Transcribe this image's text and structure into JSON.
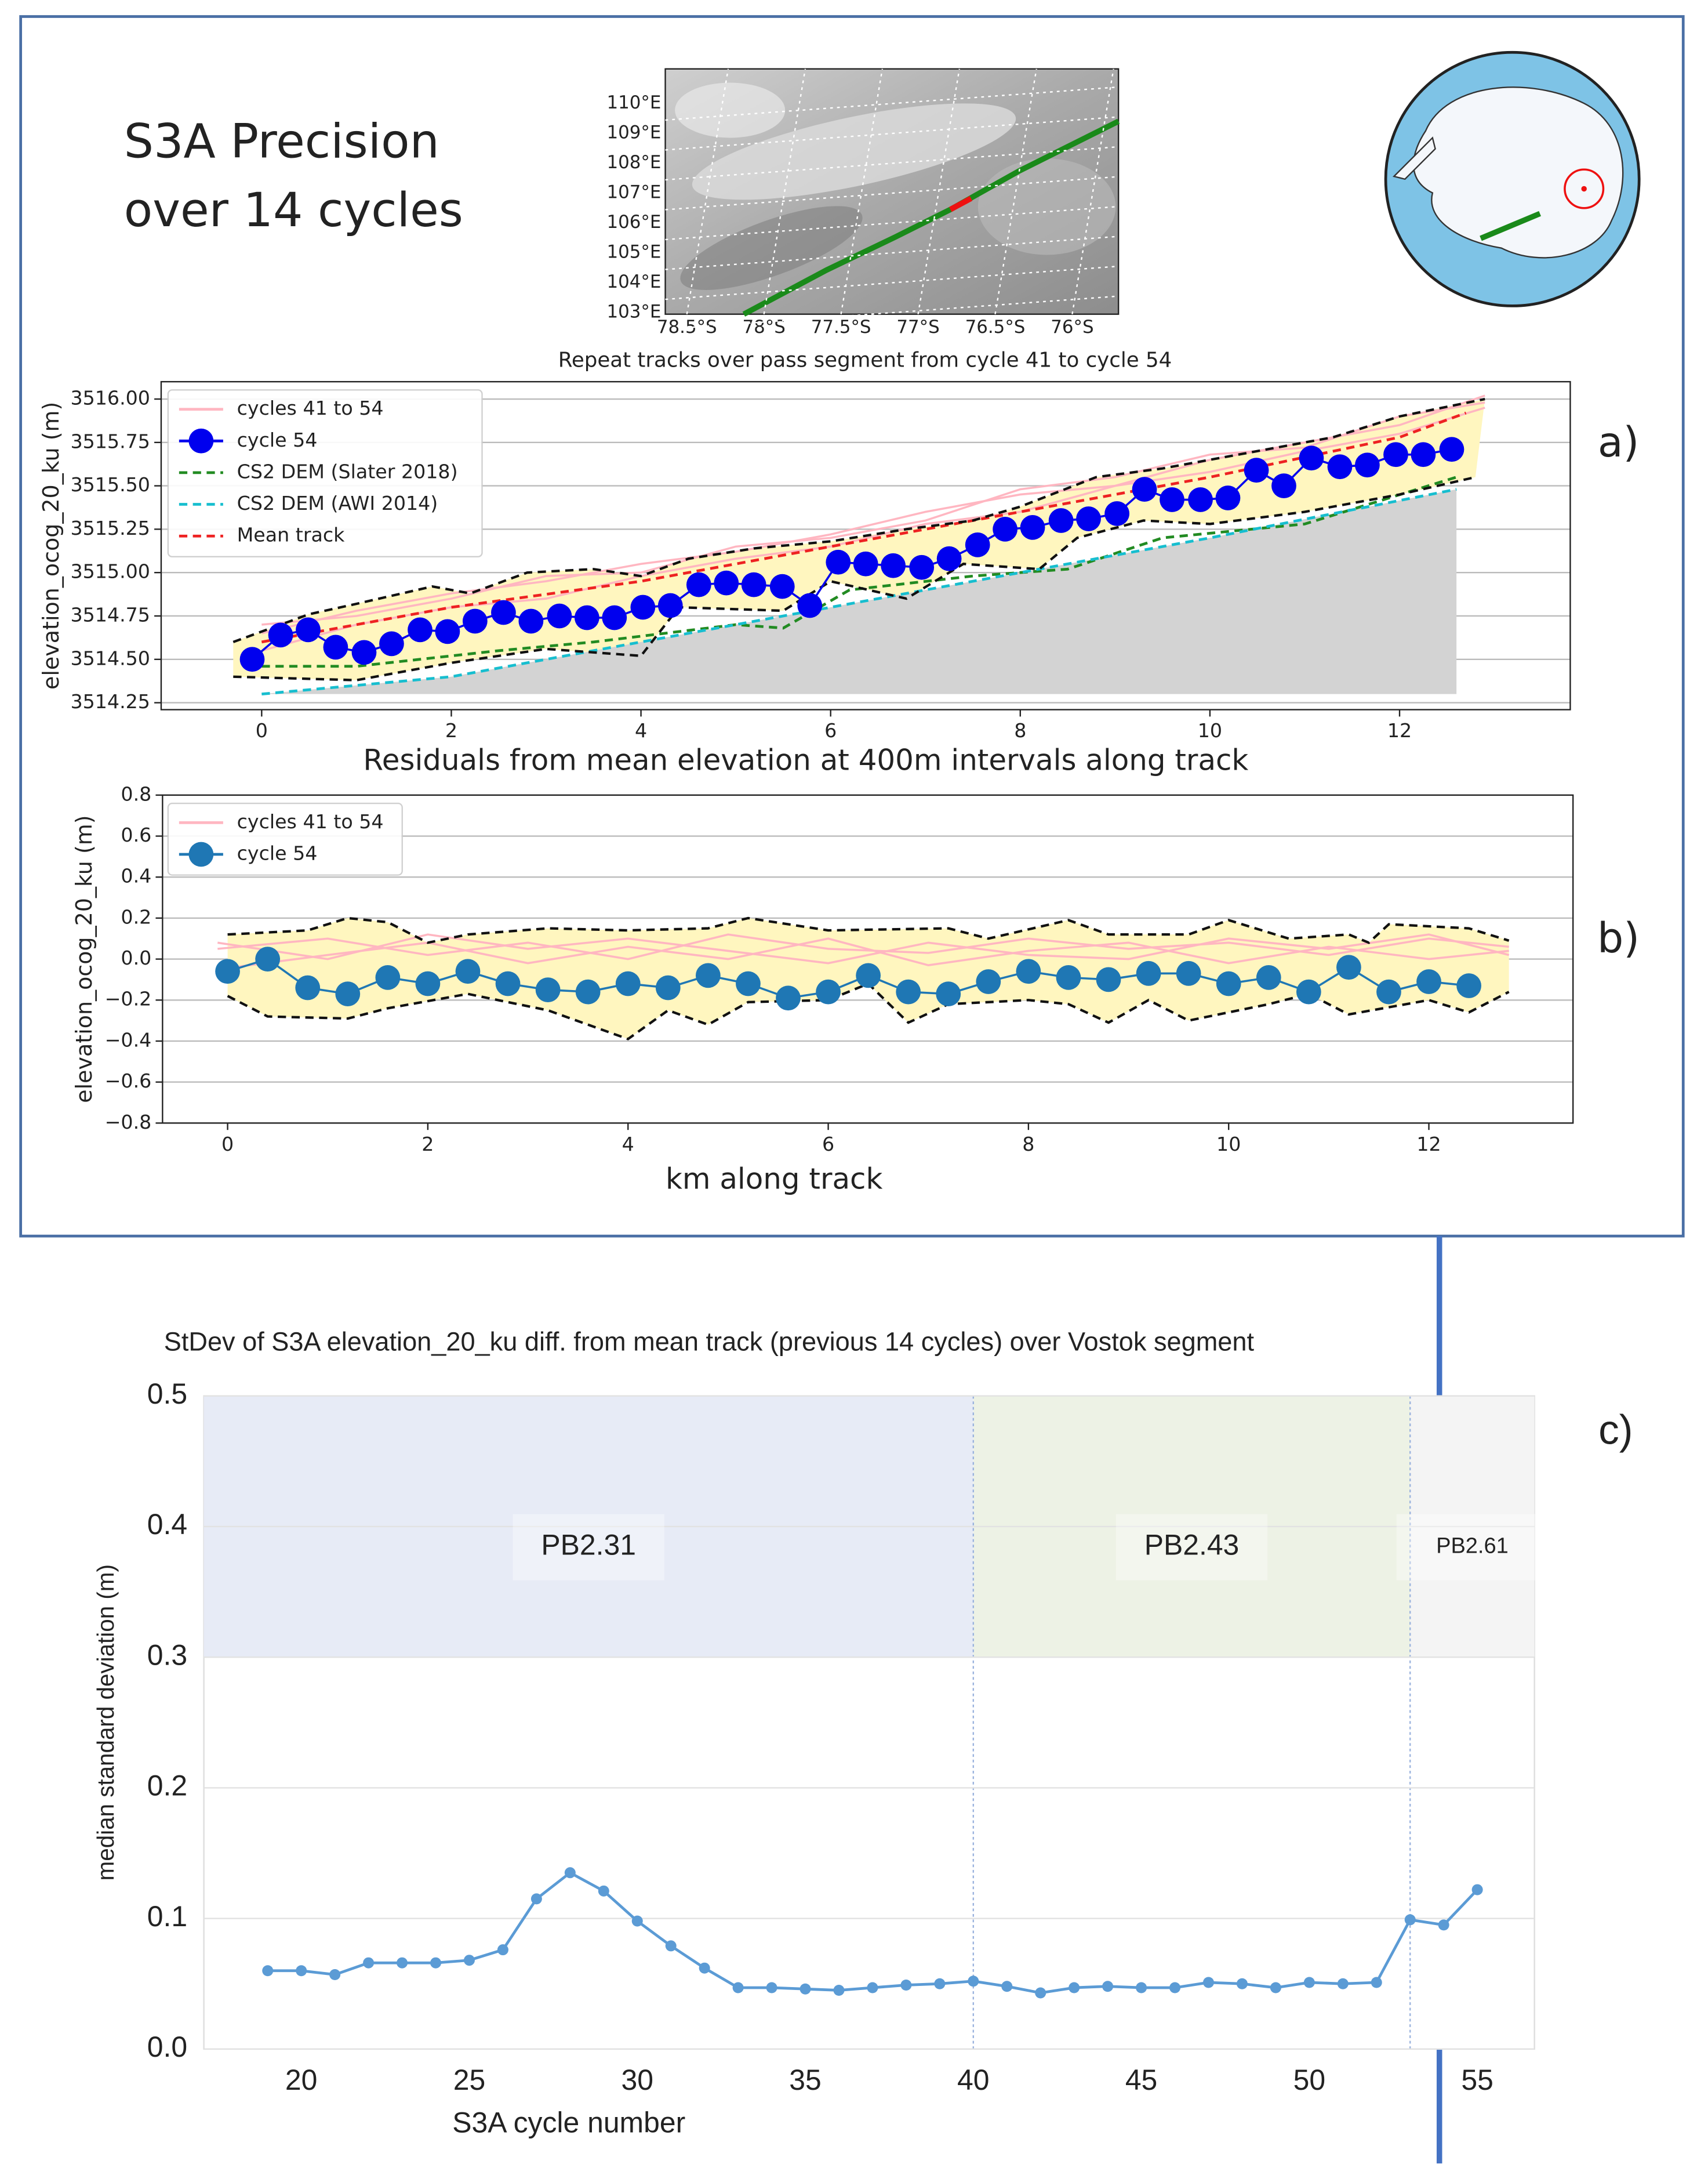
{
  "header": {
    "title": [
      "S3A Precision",
      "over 14 cycles"
    ]
  },
  "chart_data": [
    {
      "type": "map",
      "caption": "Repeat tracks over pass segment from cycle 41 to cycle 54",
      "xlim": [
        78.64,
        75.7
      ],
      "ylim": [
        102.95,
        111.16
      ],
      "xticks": [
        {
          "value": 78.5,
          "label": "78.5°S"
        },
        {
          "value": 78,
          "label": "78°S"
        },
        {
          "value": 77.5,
          "label": "77.5°S"
        },
        {
          "value": 77,
          "label": "77°S"
        },
        {
          "value": 76.5,
          "label": "76.5°S"
        },
        {
          "value": 76,
          "label": "76°S"
        }
      ],
      "yticks": [
        {
          "value": 103,
          "label": "103°E"
        },
        {
          "value": 104,
          "label": "104°E"
        },
        {
          "value": 105,
          "label": "105°E"
        },
        {
          "value": 106,
          "label": "106°E"
        },
        {
          "value": 107,
          "label": "107°E"
        },
        {
          "value": 108,
          "label": "108°E"
        },
        {
          "value": 109,
          "label": "109°E"
        },
        {
          "value": 110,
          "label": "110°E"
        }
      ]
    },
    {
      "type": "line",
      "ylabel": "elevation_ocog_20_ku (m)",
      "annotation": "a)",
      "grid": "y",
      "xlim": [
        -1.06,
        13.8
      ],
      "ylim": [
        3514.21,
        3516.1
      ],
      "xticks": [
        0,
        2,
        4,
        6,
        8,
        10,
        12
      ],
      "yticks": [
        3514.25,
        {
          "value": 3514.5,
          "label": "3514.50"
        },
        3514.75,
        {
          "value": 3515,
          "label": "3515.00"
        },
        3515.25,
        {
          "value": 3515.5,
          "label": "3515.50"
        },
        3515.75,
        {
          "value": 3516,
          "label": "3516.00"
        }
      ],
      "envelope": {
        "color": "#fff6bf",
        "upper": {
          "x": [
            -0.3,
            0.5,
            1,
            1.8,
            2.2,
            2.8,
            3.5,
            4,
            4.5,
            5.2,
            6,
            6.8,
            7.5,
            8,
            8.8,
            9.5,
            10.5,
            11.3,
            12,
            12.9
          ],
          "values": [
            3514.6,
            3514.76,
            3514.82,
            3514.92,
            3514.88,
            3515.0,
            3515.02,
            3514.98,
            3515.08,
            3515.14,
            3515.18,
            3515.25,
            3515.3,
            3515.38,
            3515.55,
            3515.6,
            3515.7,
            3515.78,
            3515.9,
            3516.0
          ]
        },
        "lower": {
          "x": [
            -0.3,
            1,
            2,
            3,
            4,
            4.4,
            5.5,
            6,
            6.8,
            7.4,
            8.2,
            8.6,
            9.3,
            10,
            11,
            12,
            12.8
          ],
          "values": [
            3514.4,
            3514.38,
            3514.48,
            3514.56,
            3514.52,
            3514.8,
            3514.78,
            3514.95,
            3514.85,
            3515.05,
            3515.02,
            3515.2,
            3515.3,
            3515.28,
            3515.35,
            3515.45,
            3515.55
          ]
        }
      },
      "series": [
        {
          "name": "cycles 41 to 54",
          "color": "#ffb6c1",
          "x": [
            0,
            1,
            2,
            3,
            4,
            5,
            6,
            7,
            8,
            9,
            10,
            11,
            12,
            12.9
          ],
          "lines": [
            [
              3514.65,
              3514.78,
              3514.88,
              3514.95,
              3515.05,
              3515.12,
              3515.22,
              3515.35,
              3515.45,
              3515.5,
              3515.65,
              3515.75,
              3515.85,
              3516.02
            ],
            [
              3514.55,
              3514.7,
              3514.8,
              3514.85,
              3514.98,
              3515.08,
              3515.15,
              3515.28,
              3515.35,
              3515.5,
              3515.58,
              3515.7,
              3515.8,
              3515.95
            ],
            [
              3514.7,
              3514.75,
              3514.85,
              3514.98,
              3515.0,
              3515.15,
              3515.2,
              3515.3,
              3515.48,
              3515.55,
              3515.68,
              3515.72,
              3515.9,
              3515.98
            ]
          ]
        },
        {
          "name": "cycle 54",
          "color": "#0000ee",
          "marker": true,
          "x": [
            -0.1,
            0.2,
            0.49,
            0.78,
            1.08,
            1.37,
            1.67,
            1.96,
            2.25,
            2.55,
            2.84,
            3.14,
            3.43,
            3.72,
            4.02,
            4.31,
            4.61,
            4.9,
            5.19,
            5.49,
            5.78,
            6.08,
            6.37,
            6.66,
            6.96,
            7.25,
            7.55,
            7.84,
            8.13,
            8.43,
            8.72,
            9.02,
            9.31,
            9.6,
            9.9,
            10.19,
            10.49,
            10.78,
            11.07,
            11.37,
            11.66,
            11.96,
            12.25,
            12.55
          ],
          "values": [
            3514.5,
            3514.64,
            3514.67,
            3514.57,
            3514.54,
            3514.59,
            3514.67,
            3514.66,
            3514.72,
            3514.77,
            3514.72,
            3514.75,
            3514.74,
            3514.74,
            3514.8,
            3514.81,
            3514.93,
            3514.94,
            3514.93,
            3514.92,
            3514.81,
            3515.06,
            3515.05,
            3515.04,
            3515.03,
            3515.08,
            3515.16,
            3515.25,
            3515.26,
            3515.3,
            3515.31,
            3515.34,
            3515.48,
            3515.42,
            3515.42,
            3515.43,
            3515.59,
            3515.5,
            3515.66,
            3515.61,
            3515.62,
            3515.68,
            3515.68,
            3515.71
          ]
        },
        {
          "name": "CS2 DEM (Slater 2018)",
          "color": "#228b22",
          "dash": true,
          "x": [
            0,
            1,
            2.5,
            3.5,
            5,
            5.5,
            6.2,
            7.5,
            8.5,
            9.5,
            11,
            12.6
          ],
          "values": [
            3514.46,
            3514.46,
            3514.55,
            3514.6,
            3514.7,
            3514.68,
            3514.9,
            3514.98,
            3515.02,
            3515.2,
            3515.28,
            3515.55
          ]
        },
        {
          "name": "CS2 DEM (AWI 2014)",
          "color": "#17becf",
          "dash": true,
          "fill": "#d3d3d3",
          "fill_base": 3514.3,
          "x": [
            0,
            2,
            4,
            6,
            8,
            10,
            12.6
          ],
          "values": [
            3514.3,
            3514.4,
            3514.6,
            3514.8,
            3515.0,
            3515.2,
            3515.48
          ]
        },
        {
          "name": "Mean track",
          "color": "#ee2222",
          "dash": true,
          "x": [
            0,
            2,
            4,
            6,
            8,
            10,
            12,
            12.7
          ],
          "values": [
            3514.6,
            3514.8,
            3514.95,
            3515.15,
            3515.35,
            3515.55,
            3515.78,
            3515.92
          ]
        }
      ]
    },
    {
      "type": "line",
      "title": "Residuals from mean elevation at 400m intervals along track",
      "xlabel": "km along track",
      "ylabel": "elevation_ocog_20_ku (m)",
      "annotation": "b)",
      "grid": "y",
      "xlim": [
        -0.65,
        13.44
      ],
      "ylim": [
        -0.8,
        0.8
      ],
      "xticks": [
        0,
        2,
        4,
        6,
        8,
        10,
        12
      ],
      "yticks": [
        {
          "value": -0.8,
          "label": "−0.8"
        },
        {
          "value": -0.6,
          "label": "−0.6"
        },
        {
          "value": -0.4,
          "label": "−0.4"
        },
        {
          "value": -0.2,
          "label": "−0.2"
        },
        {
          "value": 0,
          "label": "0.0"
        },
        0.2,
        0.4,
        0.6,
        0.8
      ],
      "envelope": {
        "color": "#fff6bf",
        "upper": {
          "x": [
            0,
            0.8,
            1.2,
            1.6,
            2.0,
            2.4,
            3.2,
            4,
            4.8,
            5.2,
            6,
            7.2,
            7.6,
            8.4,
            8.8,
            9.6,
            10,
            10.6,
            11.2,
            11.4,
            11.6,
            12.4,
            12.8
          ],
          "values": [
            0.12,
            0.14,
            0.2,
            0.18,
            0.08,
            0.12,
            0.15,
            0.14,
            0.15,
            0.2,
            0.14,
            0.15,
            0.1,
            0.19,
            0.12,
            0.12,
            0.19,
            0.1,
            0.12,
            0.08,
            0.17,
            0.15,
            0.09
          ]
        },
        "lower": {
          "x": [
            0,
            0.4,
            1.2,
            1.6,
            2.4,
            3.2,
            3.6,
            4.0,
            4.4,
            4.8,
            5.2,
            6,
            6.4,
            6.8,
            7.2,
            8,
            8.4,
            8.8,
            9.2,
            9.6,
            10.4,
            10.8,
            11.2,
            12,
            12.4,
            12.8
          ],
          "values": [
            -0.18,
            -0.28,
            -0.29,
            -0.24,
            -0.17,
            -0.25,
            -0.32,
            -0.39,
            -0.25,
            -0.32,
            -0.21,
            -0.2,
            -0.12,
            -0.31,
            -0.22,
            -0.2,
            -0.22,
            -0.31,
            -0.2,
            -0.3,
            -0.22,
            -0.17,
            -0.27,
            -0.2,
            -0.26,
            -0.16
          ]
        }
      },
      "series": [
        {
          "name": "cycles 41 to 54",
          "color": "#ffb6c1",
          "x": [
            -0.1,
            1,
            2,
            3,
            4,
            5,
            6,
            7,
            8,
            9,
            10,
            11,
            12,
            12.8
          ],
          "lines": [
            [
              0.05,
              0.1,
              0.02,
              0.08,
              0.0,
              0.12,
              0.05,
              0.03,
              0.1,
              0.05,
              0.08,
              0.02,
              0.1,
              0.06
            ],
            [
              -0.05,
              0.02,
              0.08,
              -0.02,
              0.06,
              0.0,
              0.1,
              -0.03,
              0.04,
              0.08,
              -0.02,
              0.06,
              0.0,
              0.04
            ],
            [
              0.08,
              0.0,
              0.12,
              0.05,
              0.1,
              0.04,
              -0.02,
              0.08,
              0.02,
              0.0,
              0.1,
              0.05,
              0.12,
              0.02
            ]
          ]
        },
        {
          "name": "cycle 54",
          "color": "#1f77b4",
          "marker": true,
          "x": [
            0,
            0.4,
            0.8,
            1.2,
            1.6,
            2.0,
            2.4,
            2.8,
            3.2,
            3.6,
            4.0,
            4.4,
            4.8,
            5.2,
            5.6,
            6.0,
            6.4,
            6.8,
            7.2,
            7.6,
            8.0,
            8.4,
            8.8,
            9.2,
            9.6,
            10.0,
            10.4,
            10.8,
            11.2,
            11.6,
            12.0,
            12.4
          ],
          "values": [
            -0.06,
            0.0,
            -0.14,
            -0.17,
            -0.09,
            -0.12,
            -0.06,
            -0.12,
            -0.15,
            -0.16,
            -0.12,
            -0.14,
            -0.08,
            -0.12,
            -0.19,
            -0.16,
            -0.08,
            -0.16,
            -0.17,
            -0.11,
            -0.06,
            -0.09,
            -0.1,
            -0.07,
            -0.07,
            -0.12,
            -0.09,
            -0.16,
            -0.04,
            -0.16,
            -0.11,
            -0.13
          ]
        }
      ]
    },
    {
      "type": "line",
      "title": "StDev of S3A elevation_20_ku diff. from mean track (previous 14 cycles) over Vostok segment",
      "xlabel": "S3A cycle number",
      "ylabel": "median standard deviation (m)",
      "annotation": "c)",
      "grid": "y",
      "xlim": [
        17.1,
        56.7
      ],
      "ylim": [
        0,
        0.5
      ],
      "xticks": [
        20,
        25,
        30,
        35,
        40,
        45,
        50,
        55
      ],
      "yticks": [
        {
          "value": 0,
          "label": "0.0"
        },
        0.1,
        0.2,
        0.3,
        0.4,
        0.5
      ],
      "regions": [
        {
          "label": "PB2.31",
          "x0": 17.1,
          "x1": 40,
          "color": "#e7ebf6"
        },
        {
          "label": "PB2.43",
          "x0": 40,
          "x1": 53,
          "color": "#edf2e5"
        },
        {
          "label": "PB2.61",
          "x0": 53,
          "x1": 56.7,
          "color": "#f4f4f4"
        }
      ],
      "region_ymin": 0.3,
      "series": [
        {
          "color": "#5b9bd5",
          "marker": true,
          "small": true,
          "x": [
            19,
            20,
            21,
            22,
            23,
            24,
            25,
            26,
            27,
            28,
            29,
            30,
            31,
            32,
            33,
            34,
            35,
            36,
            37,
            38,
            39,
            40,
            41,
            42,
            43,
            44,
            45,
            46,
            47,
            48,
            49,
            50,
            51,
            52,
            53,
            54,
            55
          ],
          "values": [
            0.06,
            0.06,
            0.057,
            0.066,
            0.066,
            0.066,
            0.068,
            0.076,
            0.115,
            0.135,
            0.121,
            0.098,
            0.079,
            0.062,
            0.047,
            0.047,
            0.046,
            0.045,
            0.047,
            0.049,
            0.05,
            0.052,
            0.048,
            0.043,
            0.047,
            0.048,
            0.047,
            0.047,
            0.051,
            0.05,
            0.047,
            0.051,
            0.05,
            0.051,
            0.099,
            0.095,
            0.122
          ]
        }
      ]
    }
  ]
}
